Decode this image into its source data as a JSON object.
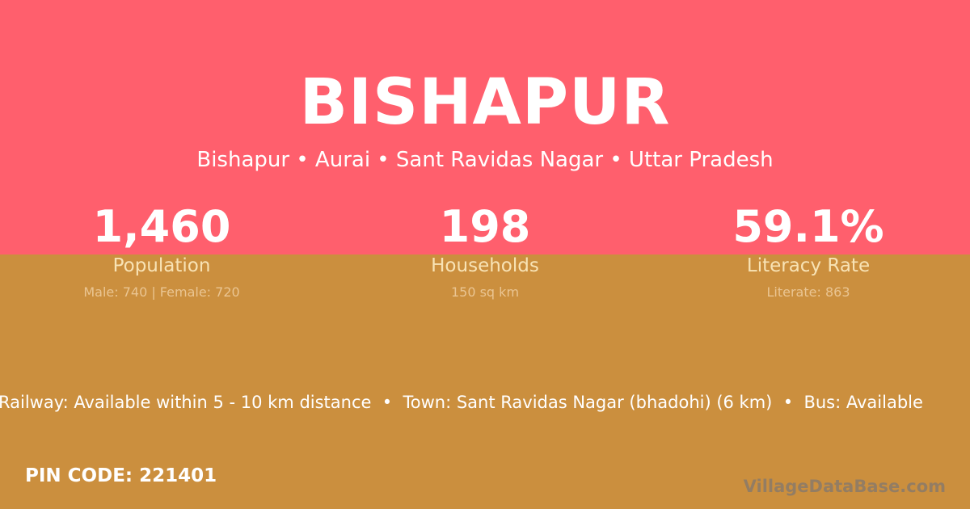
{
  "colors": {
    "top": "#ff5f6d",
    "bottom": "#cb8f3e"
  },
  "title": "BISHAPUR",
  "subtitle": "Bishapur • Aurai • Sant Ravidas Nagar • Uttar Pradesh",
  "stats": [
    {
      "value": "1,460",
      "label": "Population",
      "detail": "Male: 740 | Female: 720"
    },
    {
      "value": "198",
      "label": "Households",
      "detail": "150 sq km"
    },
    {
      "value": "59.1%",
      "label": "Literacy Rate",
      "detail": "Literate: 863"
    }
  ],
  "ticker": "Railway: Available within 5 - 10 km distance  •  Town: Sant Ravidas Nagar (bhadohi) (6 km)  •  Bus: Available",
  "pin": "PIN CODE: 221401",
  "brand": "VillageDataBase.com"
}
